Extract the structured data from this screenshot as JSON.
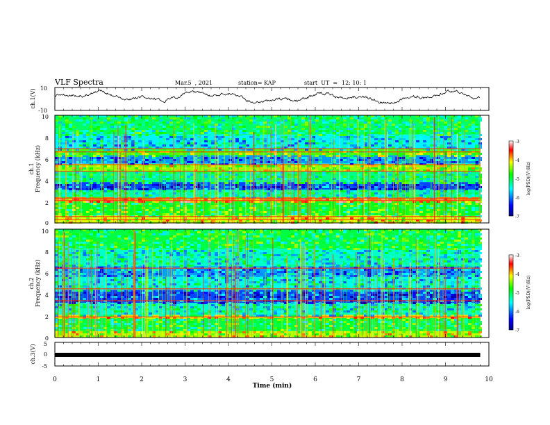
{
  "header": {
    "title": "VLF Spectra",
    "date": "Mar.5  , 2021",
    "station": "station= KAP",
    "start_label": "start  UT  =",
    "start_time": "12: 10: 1"
  },
  "chart_data": [
    {
      "type": "line",
      "panel": "ch1-waveform",
      "ylabel": "ch.1(V)",
      "ylim": [
        -10,
        10
      ],
      "ytick_labels": [
        "10",
        "-10"
      ],
      "xlim": [
        0,
        10
      ],
      "x_extent": [
        0,
        9.8
      ],
      "baseline": 1.5,
      "line_color": "#000000"
    },
    {
      "type": "heatmap",
      "panel": "ch1-spectrogram",
      "ylabel": "ch.1",
      "ylabel2": "Frequency  (kHz)",
      "ylim": [
        0,
        10
      ],
      "ytick_labels": [
        "0",
        "2",
        "4",
        "6",
        "8",
        "10"
      ],
      "xlim": [
        0,
        10
      ],
      "x_extent": [
        0,
        9.8
      ],
      "bands": [
        {
          "f": [
            0,
            0.7
          ],
          "level": -4.2
        },
        {
          "f": [
            0.7,
            2.0
          ],
          "level": -4.9
        },
        {
          "f": [
            2.0,
            2.4
          ],
          "level": -3.8
        },
        {
          "f": [
            2.4,
            3.1
          ],
          "level": -5.3
        },
        {
          "f": [
            3.1,
            3.8
          ],
          "level": -6.2
        },
        {
          "f": [
            3.8,
            4.8
          ],
          "level": -5.2
        },
        {
          "f": [
            4.8,
            5.5
          ],
          "level": -4.4
        },
        {
          "f": [
            5.5,
            6.3
          ],
          "level": -5.9
        },
        {
          "f": [
            6.3,
            6.9
          ],
          "level": -4.6
        },
        {
          "f": [
            6.9,
            8.2
          ],
          "level": -5.6
        },
        {
          "f": [
            8.2,
            10.0
          ],
          "level": -5.1
        }
      ],
      "lines_khz": [
        0.3,
        0.6,
        2.1,
        2.3,
        4.8,
        5.4,
        6.6,
        6.9
      ]
    },
    {
      "type": "heatmap",
      "panel": "ch2-spectrogram",
      "ylabel": "ch.2",
      "ylabel2": "Frequency  (kHz)",
      "ylim": [
        0,
        10
      ],
      "ytick_labels": [
        "0",
        "2",
        "4",
        "6",
        "8",
        "10"
      ],
      "xlim": [
        0,
        10
      ],
      "x_extent": [
        0,
        9.8
      ],
      "bands": [
        {
          "f": [
            0,
            0.6
          ],
          "level": -4.3
        },
        {
          "f": [
            0.6,
            1.8
          ],
          "level": -5.0
        },
        {
          "f": [
            1.8,
            2.1
          ],
          "level": -4.0
        },
        {
          "f": [
            2.1,
            3.2
          ],
          "level": -5.4
        },
        {
          "f": [
            3.2,
            4.4
          ],
          "level": -6.2
        },
        {
          "f": [
            4.4,
            5.6
          ],
          "level": -5.5
        },
        {
          "f": [
            5.6,
            6.6
          ],
          "level": -5.9
        },
        {
          "f": [
            6.6,
            8.2
          ],
          "level": -5.4
        },
        {
          "f": [
            8.2,
            10.0
          ],
          "level": -5.0
        }
      ],
      "lines_khz": [
        1.9,
        3.4,
        4.5,
        6.4
      ]
    },
    {
      "type": "line",
      "panel": "ch3-waveform",
      "ylabel": "ch.3(V)",
      "ylim": [
        -5,
        5
      ],
      "ytick_labels": [
        "5",
        "0",
        "-5"
      ],
      "xlim": [
        0,
        10
      ],
      "x_extent": [
        0,
        9.8
      ],
      "constant_value": 0,
      "xlabel": "Time  (min)",
      "xtick_labels": [
        "0",
        "1",
        "2",
        "3",
        "4",
        "5",
        "6",
        "7",
        "8",
        "9",
        "10"
      ]
    }
  ],
  "colorbar": {
    "range": [
      -7,
      -3
    ],
    "tick_labels": [
      "-3",
      "-4",
      "-5",
      "-6",
      "-7"
    ],
    "label": "log(PSD)(V²/Hz)",
    "colors": [
      "#000080",
      "#0000ff",
      "#00ffff",
      "#00ff00",
      "#ffff00",
      "#ff0000",
      "#ffffff"
    ]
  }
}
